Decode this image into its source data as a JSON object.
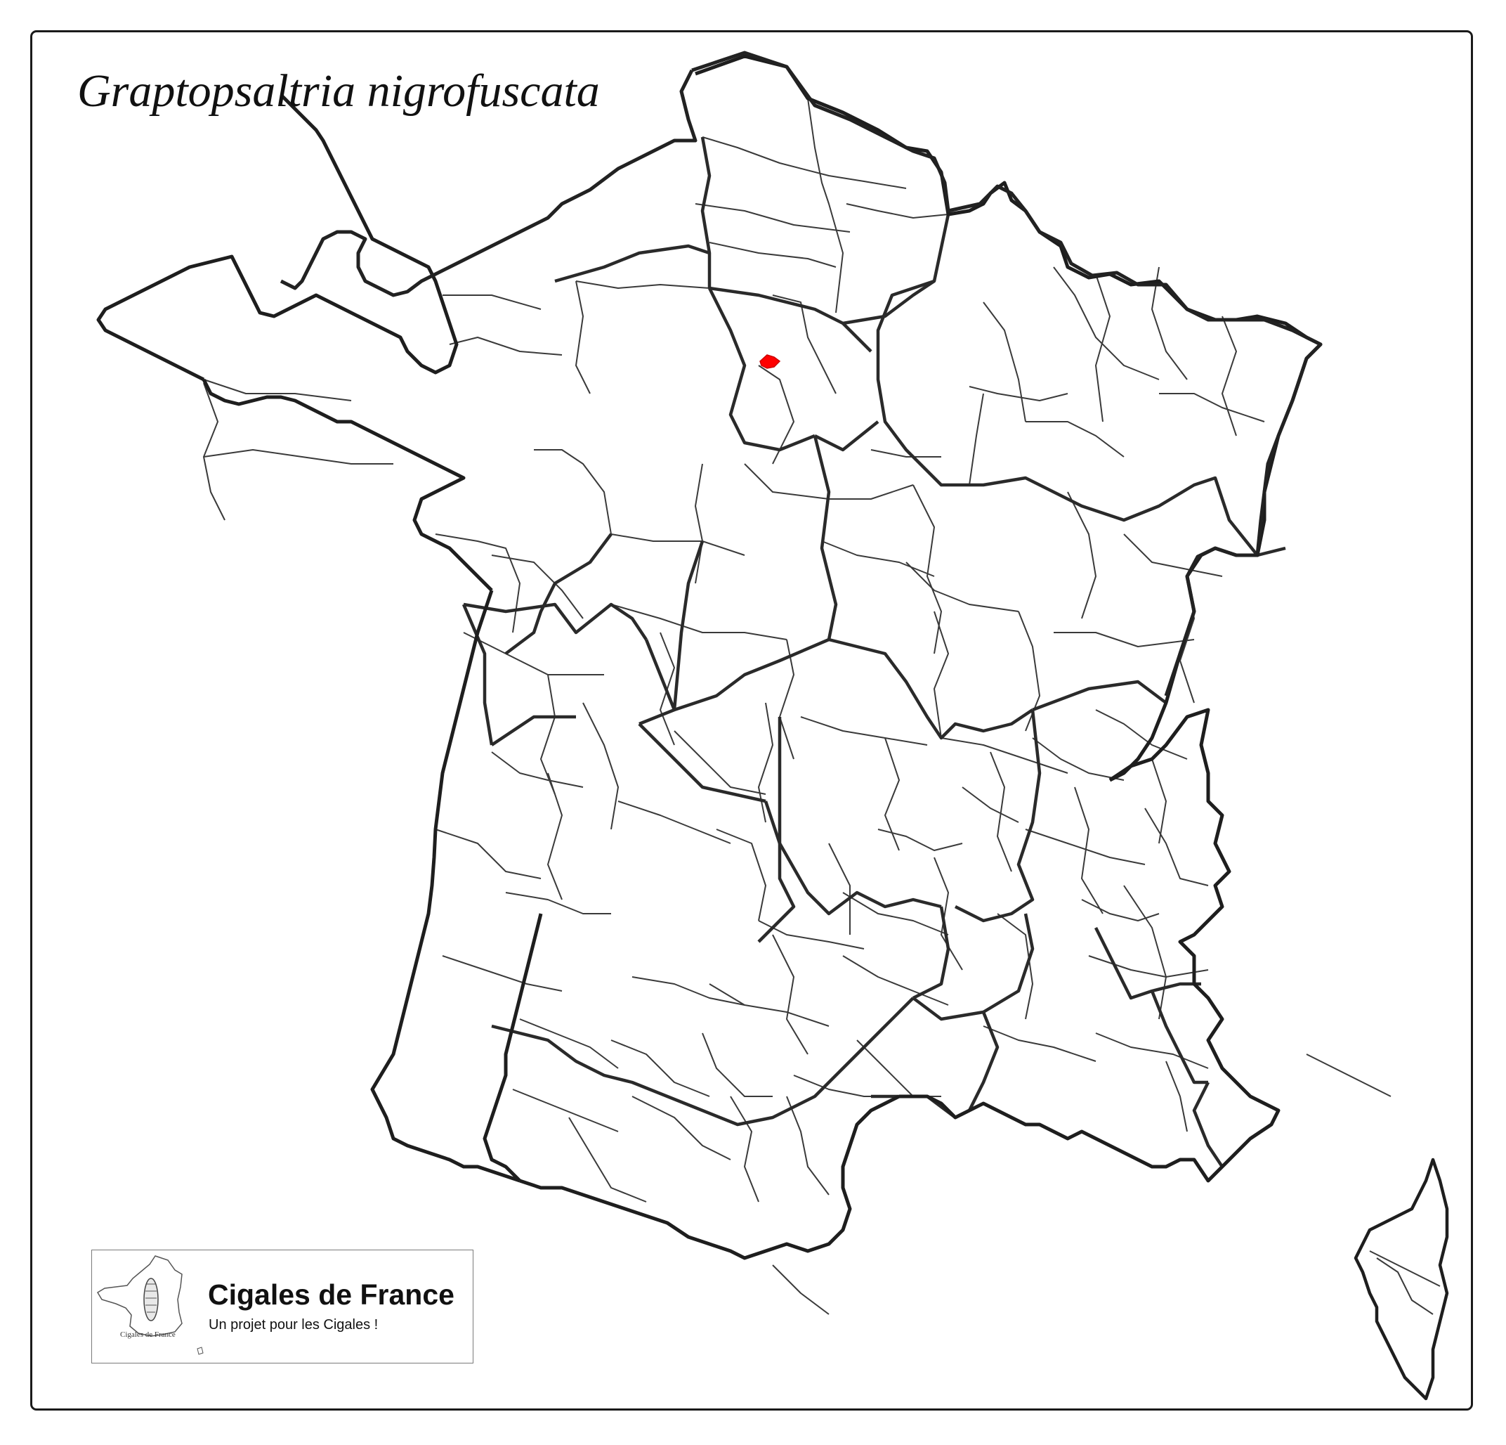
{
  "map": {
    "title": "Graptopsaltria nigrofuscata",
    "region": "France",
    "boundaries": [
      "country",
      "regions",
      "departements"
    ],
    "observation_color": "#ff0000",
    "observations": [
      {
        "area": "Paris",
        "count": 1
      }
    ]
  },
  "logo": {
    "title": "Cigales de France",
    "subtitle": "Un projet pour les Cigales !",
    "mini_label": "Cigales de France"
  }
}
